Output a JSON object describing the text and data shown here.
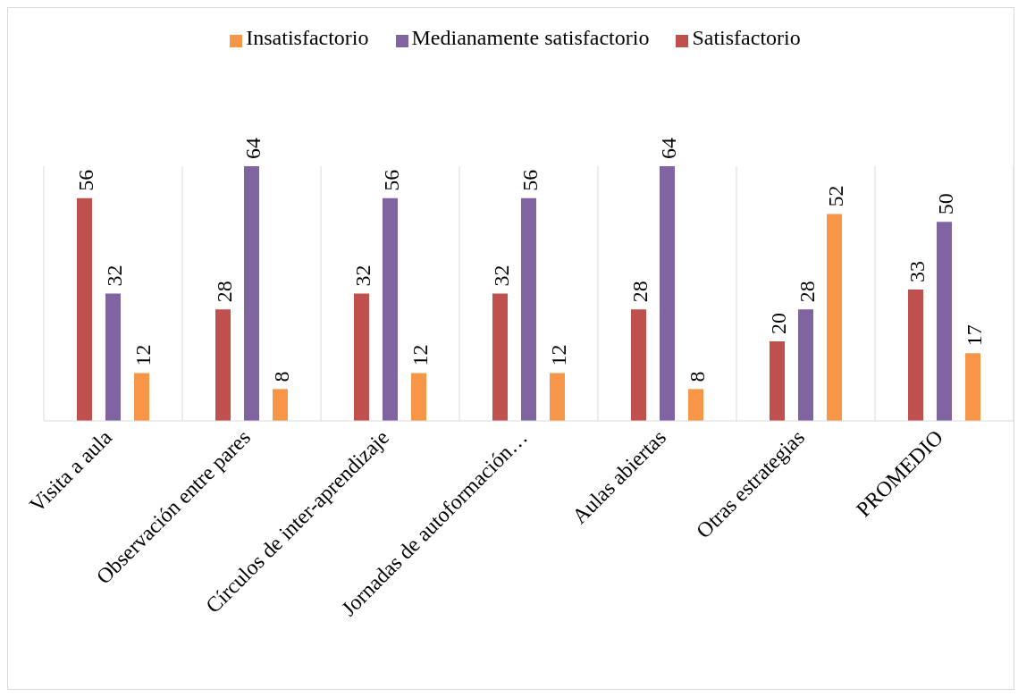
{
  "chart_data": {
    "type": "bar",
    "categories": [
      "Visita a aula",
      "Observación entre pares",
      "Círculos de inter-aprendizaje",
      "Jornadas de autoformación…",
      "Aulas abiertas",
      "Otras estrategias",
      "PROMEDIO"
    ],
    "series": [
      {
        "name": "Satisfactorio",
        "color": "#c0504d",
        "values": [
          56,
          28,
          32,
          32,
          28,
          20,
          33
        ]
      },
      {
        "name": "Medianamente satisfactorio",
        "color": "#8064a2",
        "values": [
          32,
          64,
          56,
          56,
          64,
          28,
          50
        ]
      },
      {
        "name": "Insatisfactorio",
        "color": "#f79646",
        "values": [
          12,
          8,
          12,
          12,
          8,
          52,
          17
        ]
      }
    ],
    "data_labels": true,
    "grid": "x",
    "legend": "top"
  }
}
